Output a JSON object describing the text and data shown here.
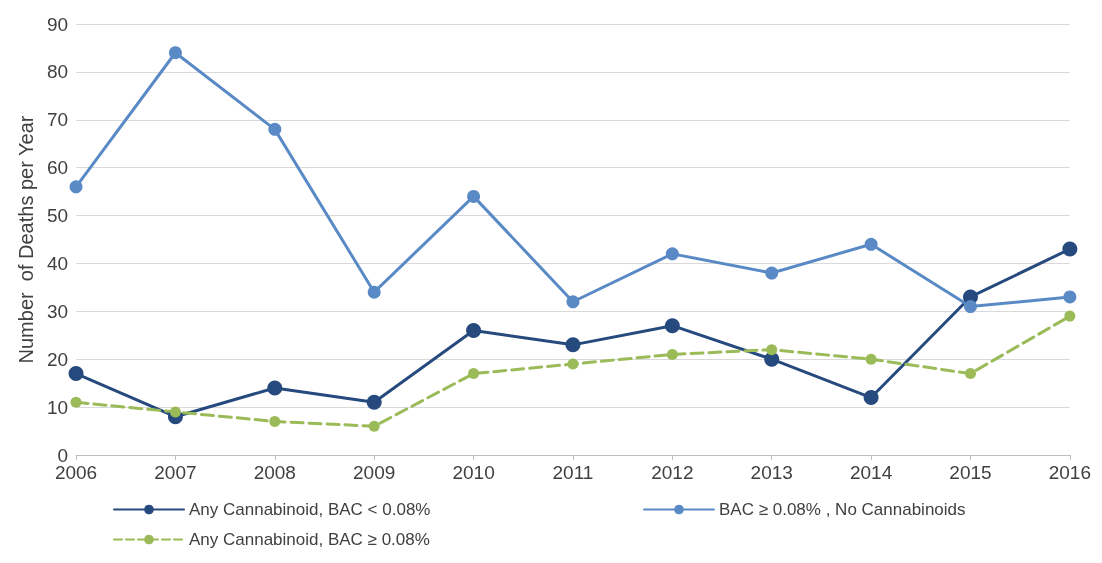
{
  "chart_data": {
    "type": "line",
    "ylabel": "Number  of Deaths per Year",
    "categories": [
      "2006",
      "2007",
      "2008",
      "2009",
      "2010",
      "2011",
      "2012",
      "2013",
      "2014",
      "2015",
      "2016"
    ],
    "series": [
      {
        "name": "Any Cannabinoid, BAC < 0.08%",
        "color": "#264a7e",
        "values": [
          17,
          8,
          14,
          11,
          26,
          23,
          27,
          20,
          12,
          33,
          43
        ]
      },
      {
        "name": "BAC ≥ 0.08% , No Cannabinoids",
        "color": "#5a8ac6",
        "values": [
          56,
          84,
          68,
          34,
          54,
          32,
          42,
          38,
          44,
          31,
          33
        ]
      },
      {
        "name": "Any Cannabinoid, BAC ≥ 0.08%",
        "color": "#9bbb59",
        "line_style": "dashed",
        "values": [
          11,
          9,
          7,
          6,
          17,
          19,
          21,
          22,
          20,
          17,
          29
        ]
      }
    ],
    "ylim": [
      0,
      90
    ],
    "yticks": [
      0,
      10,
      20,
      30,
      40,
      50,
      60,
      70,
      80,
      90
    ],
    "grid": "y",
    "legend": "bottom",
    "marker": "circle",
    "line_style": "solid"
  }
}
